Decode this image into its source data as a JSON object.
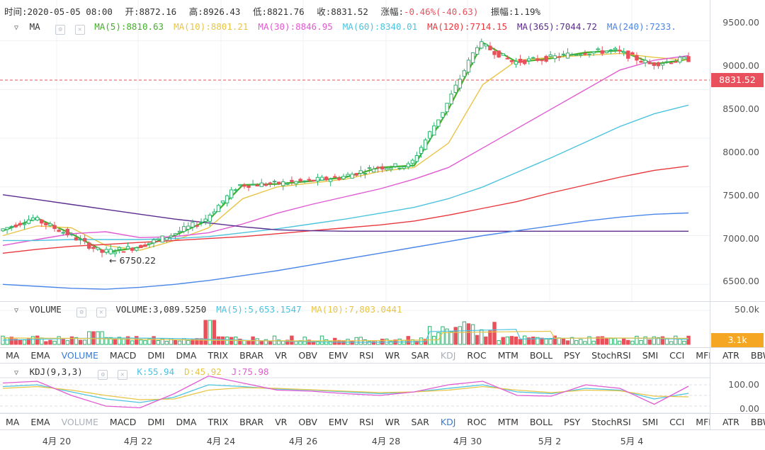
{
  "header": {
    "time_label": "时间:2020-05-05 08:00",
    "open_label": "开:8872.16",
    "high_label": "高:8926.43",
    "low_label": "低:8821.76",
    "close_label": "收:8831.52",
    "change_label": "涨幅:",
    "change_value": "-0.46%(-40.63)",
    "amplitude_label": "振幅:1.19%"
  },
  "ma_legend": {
    "name": "MA",
    "items": [
      {
        "label": "MA(5):8810.63",
        "color": "#43b02a"
      },
      {
        "label": "MA(10):8801.21",
        "color": "#e8c547"
      },
      {
        "label": "MA(30):8846.95",
        "color": "#e05ad1"
      },
      {
        "label": "MA(60):8340.01",
        "color": "#4dc3de"
      },
      {
        "label": "MA(120):7714.15",
        "color": "#e8383d"
      },
      {
        "label": "MA(365):7044.72",
        "color": "#5b2d8e"
      },
      {
        "label": "MA(240):7233.",
        "color": "#4a86e8"
      }
    ]
  },
  "volume_legend": {
    "name": "VOLUME",
    "items": [
      {
        "label": "VOLUME:3,089.5250",
        "color": "#333333"
      },
      {
        "label": "MA(5):5,653.1547",
        "color": "#4dc3de"
      },
      {
        "label": "MA(10):7,803.0441",
        "color": "#e8c547"
      }
    ]
  },
  "kdj_legend": {
    "name": "KDJ(9,3,3)",
    "items": [
      {
        "label": "K:55.94",
        "color": "#4dc3de"
      },
      {
        "label": "D:45.92",
        "color": "#e8c547"
      },
      {
        "label": "J:75.98",
        "color": "#e05ad1"
      }
    ]
  },
  "price_axis": [
    "9500.00",
    "9000.00",
    "8500.00",
    "8000.00",
    "7500.00",
    "7000.00",
    "6500.00"
  ],
  "last_price": "8831.52",
  "min_marker": "← 6750.22",
  "volume_axis": [
    "50.0k"
  ],
  "volume_last": "3.1k",
  "kdj_axis": [
    "100.00",
    "0.00"
  ],
  "indicator_tabs_1": [
    {
      "label": "MA",
      "state": "normal"
    },
    {
      "label": "EMA",
      "state": "normal"
    },
    {
      "label": "VOLUME",
      "state": "active"
    },
    {
      "label": "MACD",
      "state": "normal"
    },
    {
      "label": "DMI",
      "state": "normal"
    },
    {
      "label": "DMA",
      "state": "normal"
    },
    {
      "label": "TRIX",
      "state": "normal"
    },
    {
      "label": "BRAR",
      "state": "normal"
    },
    {
      "label": "VR",
      "state": "normal"
    },
    {
      "label": "OBV",
      "state": "normal"
    },
    {
      "label": "EMV",
      "state": "normal"
    },
    {
      "label": "RSI",
      "state": "normal"
    },
    {
      "label": "WR",
      "state": "normal"
    },
    {
      "label": "SAR",
      "state": "normal"
    },
    {
      "label": "KDJ",
      "state": "disabled"
    },
    {
      "label": "ROC",
      "state": "normal"
    },
    {
      "label": "MTM",
      "state": "normal"
    },
    {
      "label": "BOLL",
      "state": "normal"
    },
    {
      "label": "PSY",
      "state": "normal"
    },
    {
      "label": "StochRSI",
      "state": "normal"
    },
    {
      "label": "SMI",
      "state": "normal"
    },
    {
      "label": "CCI",
      "state": "normal"
    },
    {
      "label": "MFI",
      "state": "normal"
    },
    {
      "label": "ATR",
      "state": "normal"
    },
    {
      "label": "BBW",
      "state": "normal"
    }
  ],
  "indicator_tabs_2": [
    {
      "label": "MA",
      "state": "normal"
    },
    {
      "label": "EMA",
      "state": "normal"
    },
    {
      "label": "VOLUME",
      "state": "disabled"
    },
    {
      "label": "MACD",
      "state": "normal"
    },
    {
      "label": "DMI",
      "state": "normal"
    },
    {
      "label": "DMA",
      "state": "normal"
    },
    {
      "label": "TRIX",
      "state": "normal"
    },
    {
      "label": "BRAR",
      "state": "normal"
    },
    {
      "label": "VR",
      "state": "normal"
    },
    {
      "label": "OBV",
      "state": "normal"
    },
    {
      "label": "EMV",
      "state": "normal"
    },
    {
      "label": "RSI",
      "state": "normal"
    },
    {
      "label": "WR",
      "state": "normal"
    },
    {
      "label": "SAR",
      "state": "normal"
    },
    {
      "label": "KDJ",
      "state": "active"
    },
    {
      "label": "ROC",
      "state": "normal"
    },
    {
      "label": "MTM",
      "state": "normal"
    },
    {
      "label": "BOLL",
      "state": "normal"
    },
    {
      "label": "PSY",
      "state": "normal"
    },
    {
      "label": "StochRSI",
      "state": "normal"
    },
    {
      "label": "SMI",
      "state": "normal"
    },
    {
      "label": "CCI",
      "state": "normal"
    },
    {
      "label": "MFI",
      "state": "normal"
    },
    {
      "label": "ATR",
      "state": "normal"
    },
    {
      "label": "BBW",
      "state": "normal"
    }
  ],
  "time_axis": [
    "4月 20",
    "4月 22",
    "4月 24",
    "4月 26",
    "4月 28",
    "4月 30",
    "5月 2",
    "5月 4"
  ],
  "colors": {
    "up": "#2fb36f",
    "down": "#e8505b",
    "ma5": "#43b02a",
    "ma10": "#e8c547",
    "ma30": "#e05ad1",
    "ma60": "#4dc3de",
    "ma120": "#e8383d",
    "ma365": "#5b2d8e",
    "ma240": "#4a86e8"
  },
  "chart_data": {
    "type": "line",
    "x_labels": [
      "4月 20",
      "4月 22",
      "4月 24",
      "4月 26",
      "4月 28",
      "4月 30",
      "5月 2",
      "5月 4"
    ],
    "price_ylim": [
      6400,
      9600
    ],
    "series": [
      {
        "name": "MA(5)",
        "values": [
          7050,
          7180,
          7020,
          6830,
          6880,
          7000,
          7160,
          7520,
          7530,
          7560,
          7600,
          7700,
          7720,
          8300,
          8980,
          8780,
          8820,
          8880,
          8900,
          8760,
          8810
        ]
      },
      {
        "name": "MA(10)",
        "values": [
          7000,
          7100,
          7080,
          6900,
          6850,
          6950,
          7080,
          7380,
          7500,
          7540,
          7580,
          7660,
          7700,
          7950,
          8550,
          8800,
          8830,
          8850,
          8870,
          8830,
          8801
        ]
      },
      {
        "name": "MA(30)",
        "values": [
          6900,
          6960,
          7020,
          7040,
          6980,
          6990,
          7030,
          7120,
          7230,
          7320,
          7400,
          7480,
          7580,
          7700,
          7900,
          8100,
          8300,
          8500,
          8700,
          8800,
          8847
        ]
      },
      {
        "name": "MA(60)",
        "values": [
          6950,
          6950,
          6960,
          6960,
          6960,
          6970,
          6990,
          7030,
          7070,
          7120,
          7170,
          7230,
          7290,
          7380,
          7500,
          7650,
          7800,
          7960,
          8120,
          8250,
          8340
        ]
      },
      {
        "name": "MA(120)",
        "values": [
          6820,
          6860,
          6890,
          6910,
          6930,
          6950,
          6970,
          6990,
          7020,
          7050,
          7080,
          7110,
          7150,
          7210,
          7280,
          7350,
          7440,
          7520,
          7600,
          7670,
          7714
        ]
      },
      {
        "name": "MA(365)",
        "values": [
          7420,
          7370,
          7320,
          7270,
          7220,
          7170,
          7130,
          7090,
          7060,
          7050,
          7045,
          7045,
          7045,
          7045,
          7045,
          7045,
          7045,
          7045,
          7045,
          7045,
          7045
        ]
      },
      {
        "name": "MA(240)",
        "values": [
          6500,
          6480,
          6460,
          6450,
          6470,
          6500,
          6540,
          6590,
          6640,
          6700,
          6760,
          6820,
          6880,
          6940,
          7000,
          7050,
          7100,
          7150,
          7190,
          7220,
          7233
        ]
      }
    ],
    "kdj_ylim": [
      -20,
      120
    ],
    "kdj_series": [
      {
        "name": "K",
        "values": [
          75,
          80,
          60,
          40,
          30,
          45,
          80,
          75,
          68,
          65,
          60,
          55,
          60,
          70,
          80,
          60,
          55,
          70,
          65,
          40,
          55.94
        ]
      },
      {
        "name": "D",
        "values": [
          70,
          75,
          65,
          50,
          38,
          40,
          65,
          72,
          70,
          66,
          62,
          58,
          60,
          65,
          75,
          65,
          58,
          65,
          63,
          48,
          45.92
        ]
      },
      {
        "name": "J",
        "values": [
          85,
          90,
          50,
          20,
          15,
          55,
          105,
          85,
          65,
          62,
          55,
          50,
          60,
          80,
          90,
          50,
          48,
          80,
          70,
          25,
          75.98
        ]
      }
    ]
  }
}
